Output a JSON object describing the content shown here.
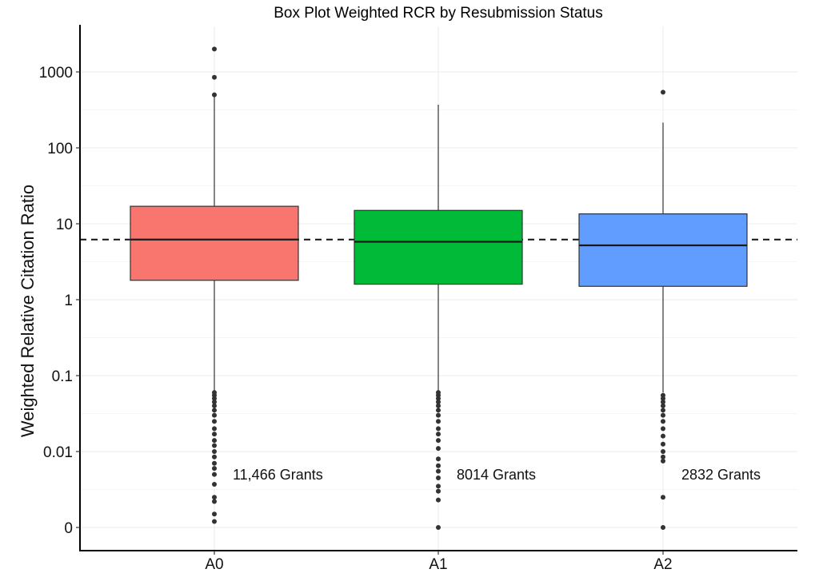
{
  "chart_data": {
    "type": "boxplot",
    "title": "Box Plot Weighted RCR by Resubmission Status",
    "ylabel": "Weighted Relative Citation Ratio",
    "xlabel": "",
    "y_scale": "log",
    "y_ticks": [
      {
        "value": 0.001,
        "label": "0"
      },
      {
        "value": 0.01,
        "label": "0.01"
      },
      {
        "value": 0.1,
        "label": "0.1"
      },
      {
        "value": 1,
        "label": "1"
      },
      {
        "value": 10,
        "label": "10"
      },
      {
        "value": 100,
        "label": "100"
      },
      {
        "value": 1000,
        "label": "1000"
      }
    ],
    "categories": [
      "A0",
      "A1",
      "A2"
    ],
    "reference_line": {
      "value": 6.2,
      "style": "dashed"
    },
    "grid": true,
    "series": [
      {
        "category": "A0",
        "color": "#f8766d",
        "q1": 1.8,
        "median": 6.2,
        "q3": 17,
        "whisker_low": 0.06,
        "whisker_high": 500,
        "outliers_high": [
          2000,
          850,
          500
        ],
        "outliers_low": [
          0.06,
          0.055,
          0.05,
          0.045,
          0.04,
          0.035,
          0.03,
          0.025,
          0.02,
          0.017,
          0.014,
          0.012,
          0.01,
          0.0085,
          0.007,
          0.006,
          0.005,
          0.0037,
          0.0025,
          0.0022,
          0.0015,
          0.0012
        ],
        "annotation": "11,466 Grants"
      },
      {
        "category": "A1",
        "color": "#00ba38",
        "q1": 1.6,
        "median": 5.8,
        "q3": 15,
        "whisker_low": 0.06,
        "whisker_high": 370,
        "outliers_high": [],
        "outliers_low": [
          0.06,
          0.055,
          0.05,
          0.045,
          0.04,
          0.035,
          0.03,
          0.025,
          0.02,
          0.017,
          0.014,
          0.011,
          0.008,
          0.0065,
          0.0055,
          0.0045,
          0.0035,
          0.003,
          0.0023,
          0.001
        ],
        "annotation": "8014 Grants"
      },
      {
        "category": "A2",
        "color": "#619cff",
        "q1": 1.5,
        "median": 5.2,
        "q3": 13.5,
        "whisker_low": 0.06,
        "whisker_high": 215,
        "outliers_high": [
          540
        ],
        "outliers_low": [
          0.055,
          0.05,
          0.045,
          0.04,
          0.035,
          0.03,
          0.025,
          0.02,
          0.016,
          0.0125,
          0.01,
          0.0085,
          0.0075,
          0.0025,
          0.001
        ],
        "annotation": "2832 Grants"
      }
    ]
  }
}
